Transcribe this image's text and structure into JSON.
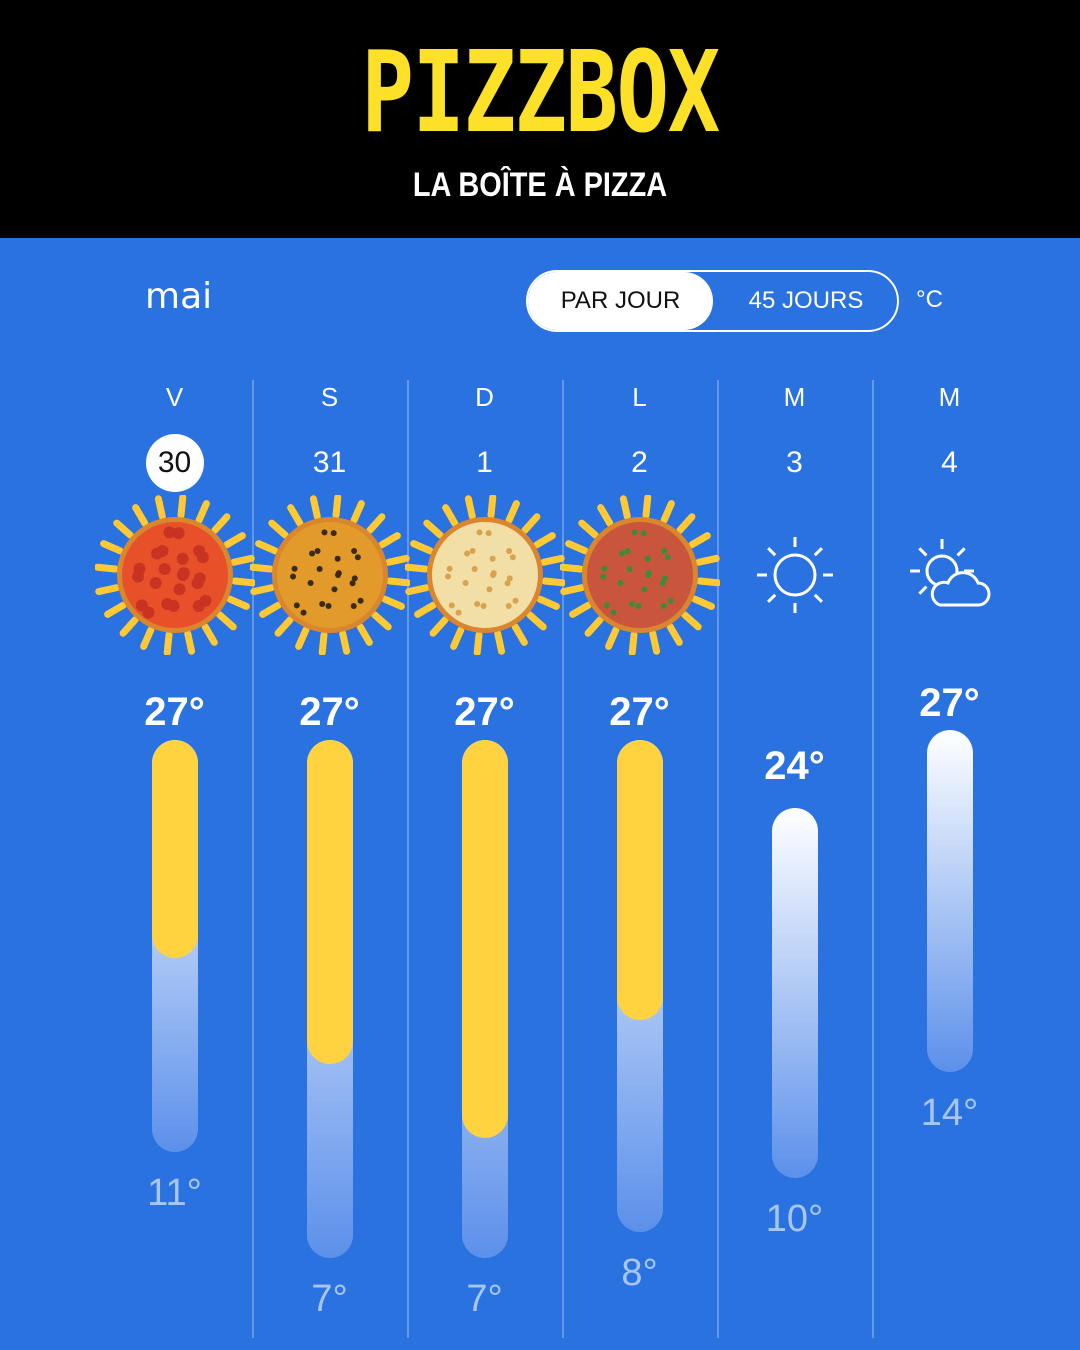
{
  "header": {
    "brand": "PIZZBOX",
    "tagline": "LA BOÎTE À PIZZA"
  },
  "month": "mai",
  "toggle": {
    "options": [
      "PAR JOUR",
      "45 JOURS"
    ],
    "selected": "PAR JOUR"
  },
  "unit": "°C",
  "colors": {
    "background": "#2a72e0",
    "accent": "#ffd23f",
    "header": "#000000",
    "brand": "#fde128"
  },
  "days": [
    {
      "dow": "V",
      "date": "30",
      "today": true,
      "icon": "pizza-sun-pepperoni-icon",
      "high": "27°",
      "low": "11°"
    },
    {
      "dow": "S",
      "date": "31",
      "icon": "pizza-sun-vegetable-icon",
      "high": "27°",
      "low": "7°"
    },
    {
      "dow": "D",
      "date": "1",
      "icon": "pizza-sun-cheese-icon",
      "high": "27°",
      "low": "7°"
    },
    {
      "dow": "L",
      "date": "2",
      "icon": "pizza-sun-margherita-icon",
      "high": "27°",
      "low": "8°"
    },
    {
      "dow": "M",
      "date": "3",
      "icon": "sun-icon",
      "high": "24°",
      "low": "10°"
    },
    {
      "dow": "M",
      "date": "4",
      "icon": "partly-cloudy-icon",
      "high": "27°",
      "low": "14°"
    }
  ]
}
